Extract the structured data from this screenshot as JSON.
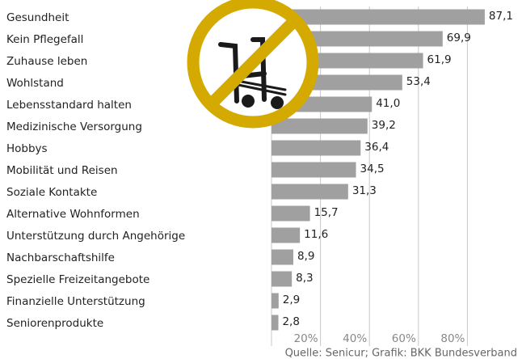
{
  "chart_data": {
    "type": "bar",
    "orientation": "horizontal",
    "categories": [
      "Gesundheit",
      "Kein Pflegefall",
      "Zuhause leben",
      "Wohlstand",
      "Lebensstandard halten",
      "Medizinische Versorgung",
      "Hobbys",
      "Mobilität und Reisen",
      "Soziale Kontakte",
      "Alternative Wohnformen",
      "Unterstützung durch Angehörige",
      "Nachbarschaftshilfe",
      "Spezielle Freizeitangebote",
      "Finanzielle Unterstützung",
      "Seniorenprodukte"
    ],
    "values": [
      87.1,
      69.9,
      61.9,
      53.4,
      41.0,
      39.2,
      36.4,
      34.5,
      31.3,
      15.7,
      11.6,
      8.9,
      8.3,
      2.9,
      2.8
    ],
    "value_labels": [
      "87,1",
      "69,9",
      "61,9",
      "53,4",
      "41,0",
      "39,2",
      "36,4",
      "34,5",
      "31,3",
      "15,7",
      "11,6",
      "8,9",
      "8,3",
      "2,9",
      "2,8"
    ],
    "color": "#a0a0a0",
    "xlim": [
      0,
      100
    ],
    "xticks": [
      {
        "value": 20,
        "label": "20%"
      },
      {
        "value": 40,
        "label": "40%"
      },
      {
        "value": 60,
        "label": "60%"
      },
      {
        "value": 80,
        "label": "80%"
      }
    ],
    "grid": true,
    "source": "Quelle: Senicur; Grafik: BKK Bundesverband"
  }
}
